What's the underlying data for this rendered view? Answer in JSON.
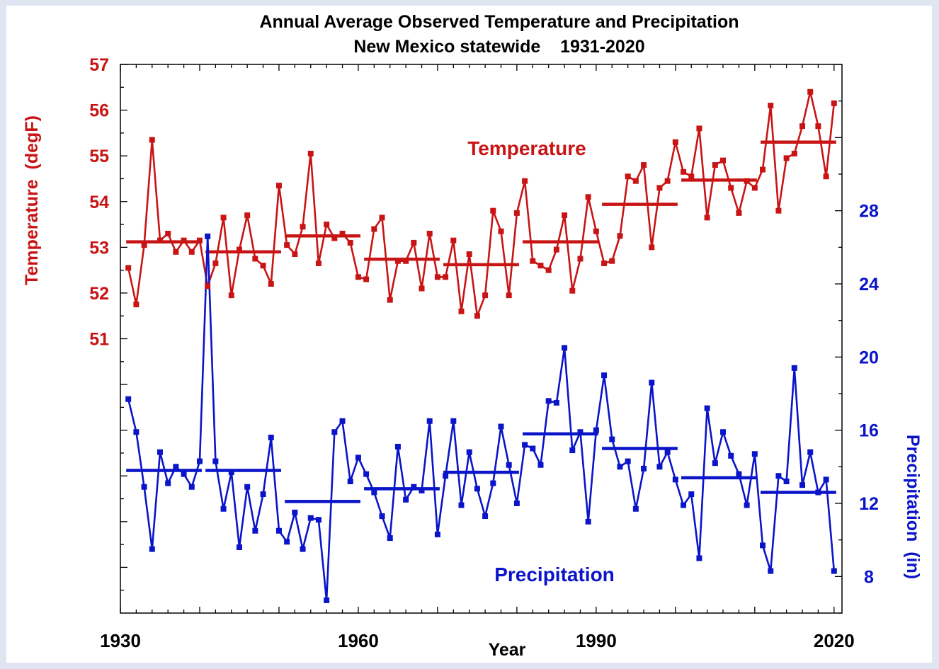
{
  "chart_data": {
    "type": "line",
    "title": "Annual Average Observed Temperature and Precipitation",
    "subtitle": "New Mexico statewide    1931-2020",
    "xlabel": "Year",
    "ylabel_left": "Temperature  (degF)",
    "ylabel_right": "Precipitation  (in)",
    "xlim": [
      1930,
      2021
    ],
    "x_ticks": [
      "1930",
      "1960",
      "1990",
      "2020"
    ],
    "y_left_lim": [
      45,
      57
    ],
    "y_left_ticks": [
      "51",
      "52",
      "53",
      "54",
      "55",
      "56",
      "57"
    ],
    "y_right_lim": [
      6,
      36
    ],
    "y_right_ticks": [
      "8",
      "12",
      "16",
      "20",
      "24",
      "28"
    ],
    "colors": {
      "temperature": "#c81414",
      "precipitation": "#0a14c8"
    },
    "annotations": {
      "temperature": "Temperature",
      "precipitation": "Precipitation"
    },
    "x": [
      1931,
      1932,
      1933,
      1934,
      1935,
      1936,
      1937,
      1938,
      1939,
      1940,
      1941,
      1942,
      1943,
      1944,
      1945,
      1946,
      1947,
      1948,
      1949,
      1950,
      1951,
      1952,
      1953,
      1954,
      1955,
      1956,
      1957,
      1958,
      1959,
      1960,
      1961,
      1962,
      1963,
      1964,
      1965,
      1966,
      1967,
      1968,
      1969,
      1970,
      1971,
      1972,
      1973,
      1974,
      1975,
      1976,
      1977,
      1978,
      1979,
      1980,
      1981,
      1982,
      1983,
      1984,
      1985,
      1986,
      1987,
      1988,
      1989,
      1990,
      1991,
      1992,
      1993,
      1994,
      1995,
      1996,
      1997,
      1998,
      1999,
      2000,
      2001,
      2002,
      2003,
      2004,
      2005,
      2006,
      2007,
      2008,
      2009,
      2010,
      2011,
      2012,
      2013,
      2014,
      2015,
      2016,
      2017,
      2018,
      2019,
      2020
    ],
    "series": [
      {
        "axis": "left",
        "values": [
          52.55,
          51.75,
          53.05,
          55.35,
          53.15,
          53.3,
          52.9,
          53.15,
          52.9,
          53.15,
          52.15,
          52.65,
          53.65,
          51.95,
          52.95,
          53.7,
          52.75,
          52.6,
          52.2,
          54.35,
          53.05,
          52.85,
          53.45,
          55.05,
          52.65,
          53.5,
          53.2,
          53.3,
          53.1,
          52.35,
          52.3,
          53.4,
          53.65,
          51.85,
          52.7,
          52.7,
          53.1,
          52.1,
          53.3,
          52.35,
          52.35,
          53.15,
          51.6,
          52.85,
          51.5,
          51.95,
          53.8,
          53.35,
          51.95,
          53.75,
          54.45,
          52.7,
          52.6,
          52.5,
          52.95,
          53.7,
          52.05,
          52.75,
          54.1,
          53.35,
          52.65,
          52.7,
          53.25,
          54.55,
          54.45,
          54.8,
          53,
          54.3,
          54.45,
          55.3,
          54.65,
          54.55,
          55.6,
          53.65,
          54.8,
          54.9,
          54.3,
          53.75,
          54.45,
          54.3,
          54.7,
          56.1,
          53.8,
          54.95,
          55.05,
          55.65,
          56.4,
          55.65,
          54.55,
          56.15
        ]
      },
      {
        "axis": "right",
        "values": [
          17.7,
          15.9,
          12.9,
          9.5,
          14.8,
          13.1,
          14,
          13.6,
          12.9,
          14.3,
          26.6,
          14.3,
          11.7,
          13.7,
          9.6,
          12.9,
          10.5,
          12.5,
          15.6,
          10.5,
          9.9,
          11.5,
          9.5,
          11.2,
          11.1,
          6.7,
          15.9,
          16.5,
          13.2,
          14.5,
          13.6,
          12.6,
          11.3,
          10.1,
          15.1,
          12.2,
          12.9,
          12.7,
          16.5,
          10.3,
          13.5,
          16.5,
          11.9,
          14.8,
          12.8,
          11.3,
          13.1,
          16.2,
          14.1,
          12,
          15.2,
          15,
          14.1,
          17.6,
          17.5,
          20.5,
          14.9,
          15.9,
          11,
          16,
          19,
          15.5,
          14,
          14.3,
          11.7,
          13.9,
          18.6,
          14,
          14.8,
          13.3,
          11.9,
          12.5,
          9,
          17.2,
          14.2,
          15.9,
          14.6,
          13.6,
          11.9,
          14.7,
          9.7,
          8.3,
          13.5,
          13.2,
          19.4,
          13,
          14.8,
          12.6,
          13.3,
          8.3
        ]
      }
    ],
    "decade_means": {
      "temperature": [
        53.12,
        52.9,
        53.25,
        52.74,
        52.62,
        53.12,
        53.94,
        54.47,
        55.3
      ],
      "precipitation": [
        13.8,
        13.8,
        12.1,
        12.8,
        13.7,
        15.8,
        15,
        13.4,
        12.6
      ]
    }
  }
}
